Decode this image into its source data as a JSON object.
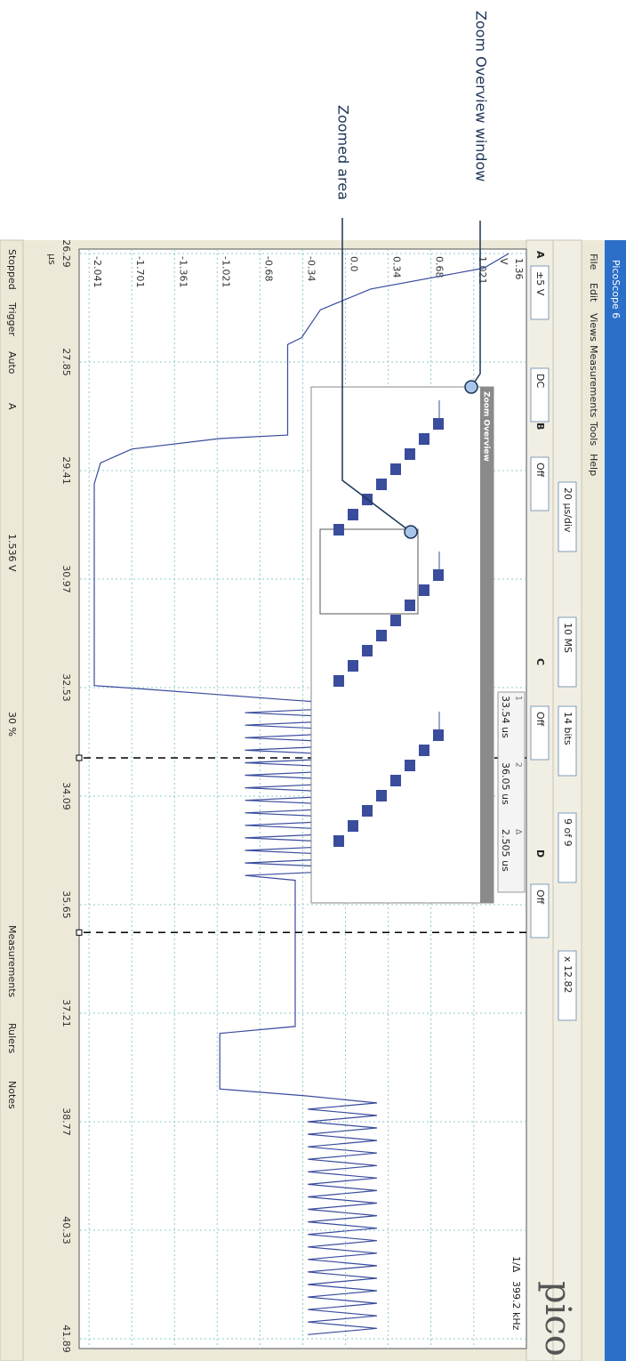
{
  "annotations": [
    "Zoom Overview window",
    "Zoomed area"
  ],
  "window": {
    "title": "PicoScope 6",
    "logo": "pico",
    "menu": [
      "File",
      "Edit",
      "Views",
      "Measurements",
      "Tools",
      "Help"
    ],
    "toolbar1": [
      "20 µs/div",
      "10 MS",
      "14 bits",
      "9 of 9",
      "x 12.82"
    ],
    "channels": [
      "A",
      "B",
      "C",
      "D"
    ],
    "toolbar2": [
      "±5 V",
      "DC",
      "Off",
      "Off",
      "Off"
    ],
    "status": [
      "Stopped",
      "Trigger",
      "Auto",
      "A",
      "1.536 V",
      "30 %",
      "Measurements",
      "Rulers",
      "Notes"
    ],
    "scale_top": "1.36"
  },
  "zoom_overview": {
    "title": "Zoom Overview"
  },
  "rulers": {
    "headers": [
      "1",
      "2",
      "Δ"
    ],
    "values": [
      33.54,
      36.05,
      2.505
    ],
    "value_labels": [
      "33.54 us",
      "36.05 us",
      "2.505 us"
    ]
  },
  "frequency": {
    "prefix": "1/Δ",
    "value": 399.2,
    "label": "399.2 kHz"
  },
  "chart_data": {
    "type": "line",
    "x_label": "µs",
    "y_label": "V",
    "x": [
      26.29,
      26.5,
      26.8,
      27.1,
      27.5,
      27.6,
      28.9,
      28.95,
      29.1,
      29.3,
      29.6,
      32.5,
      32.55,
      32.7,
      32.8,
      32.89,
      32.98,
      33.07,
      33.16,
      33.25,
      33.34,
      33.43,
      33.52,
      33.61,
      33.7,
      33.79,
      33.88,
      33.97,
      34.06,
      34.15,
      34.24,
      34.33,
      34.42,
      34.51,
      34.6,
      34.69,
      34.78,
      34.87,
      34.96,
      35.05,
      35.14,
      35.23,
      35.3,
      37.4,
      37.5,
      38.3,
      38.4,
      38.5,
      38.59,
      38.68,
      38.77,
      38.86,
      38.95,
      39.04,
      39.13,
      39.22,
      39.31,
      39.4,
      39.49,
      39.58,
      39.67,
      39.76,
      39.85,
      39.94,
      40.03,
      40.12,
      40.21,
      40.3,
      40.39,
      40.48,
      40.57,
      40.66,
      40.75,
      40.84,
      40.93,
      41.02,
      41.11,
      41.2,
      41.29,
      41.38,
      41.47,
      41.56,
      41.65,
      41.74,
      41.83
    ],
    "series": [
      {
        "color": "#3a4c9c",
        "values": [
          1.3,
          1.1,
          0.2,
          -0.2,
          -0.35,
          -0.46,
          -0.46,
          -1.0,
          -1.7,
          -1.95,
          -2.0,
          -2.0,
          -1.6,
          -0.5,
          0.3,
          -0.8,
          0.3,
          -0.8,
          0.3,
          -0.8,
          0.3,
          -0.8,
          0.3,
          -0.8,
          0.3,
          -0.8,
          0.3,
          -0.8,
          0.3,
          -0.8,
          0.3,
          -0.8,
          0.3,
          -0.8,
          0.3,
          -0.8,
          0.3,
          -0.8,
          0.3,
          -0.8,
          0.3,
          -0.8,
          -0.4,
          -0.4,
          -1.0,
          -1.0,
          -0.3,
          0.25,
          -0.3,
          0.25,
          -0.3,
          0.25,
          -0.3,
          0.25,
          -0.3,
          0.25,
          -0.3,
          0.25,
          -0.3,
          0.25,
          -0.3,
          0.25,
          -0.3,
          0.25,
          -0.3,
          0.25,
          -0.3,
          0.25,
          -0.3,
          0.25,
          -0.3,
          0.25,
          -0.3,
          0.25,
          -0.3,
          0.25,
          -0.3,
          0.25,
          -0.3,
          0.25,
          -0.3,
          0.25,
          -0.3,
          0.25,
          -0.3
        ]
      }
    ],
    "xlim": [
      26.29,
      41.89
    ],
    "ylim": [
      -2.12,
      1.44
    ],
    "xticks": [
      26.29,
      27.85,
      29.41,
      30.97,
      32.53,
      34.09,
      35.65,
      37.21,
      38.77,
      40.33,
      41.89
    ],
    "yticks": [
      1.021,
      0.68,
      0.34,
      {
        "value": 0,
        "label": "0.0"
      },
      -0.34,
      -0.68,
      -1.021,
      -1.361,
      -1.701,
      -2.041
    ],
    "grid": true
  }
}
